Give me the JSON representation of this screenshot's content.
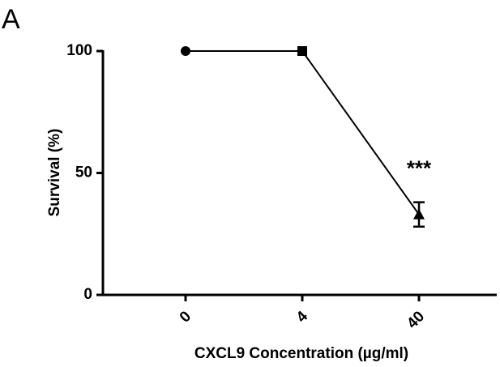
{
  "chart_data": {
    "type": "line",
    "panel_label": "A",
    "title": null,
    "x_label": "CXCL9 Concentration (µg/ml)",
    "y_label": "Survival (%)",
    "categories": [
      "0",
      "4",
      "40"
    ],
    "series": [
      {
        "name": null,
        "color": "#000000",
        "values": [
          100,
          100,
          33
        ],
        "errors": [
          null,
          null,
          5
        ],
        "markers": [
          "circle",
          "square",
          "triangle"
        ]
      }
    ],
    "ylim": [
      0,
      100
    ],
    "yticks": [
      0,
      50,
      100
    ],
    "grid": false,
    "annotation": "***"
  }
}
